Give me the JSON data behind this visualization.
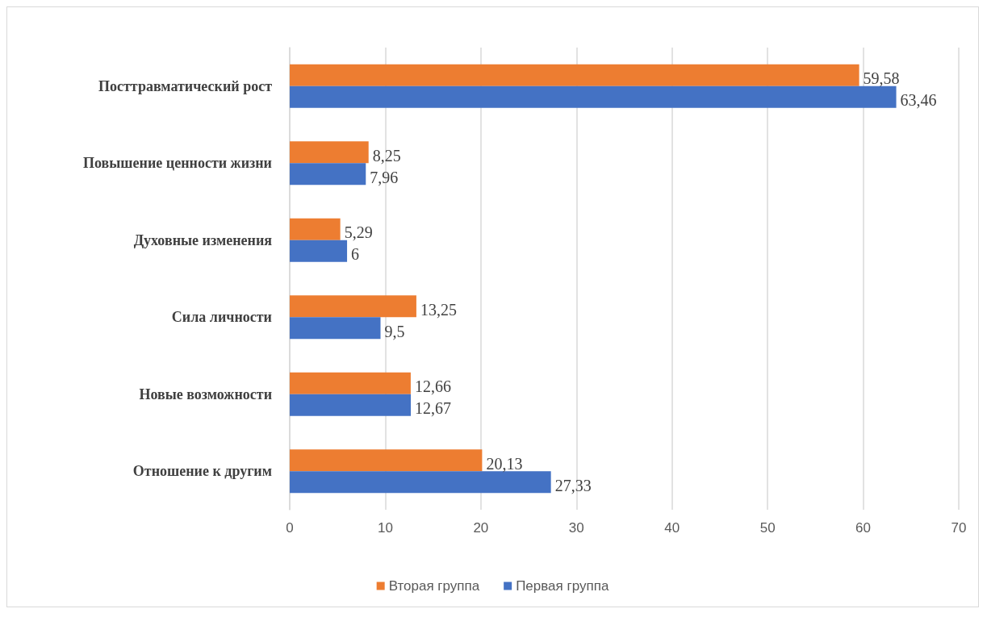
{
  "chart_data": {
    "type": "bar",
    "orientation": "horizontal",
    "categories": [
      "Посттравматический рост",
      "Повышение ценности жизни",
      "Духовные изменения",
      "Сила личности",
      "Новые возможности",
      "Отношение к другим"
    ],
    "series": [
      {
        "name": "Вторая группа",
        "color": "#ed7d31",
        "values": [
          59.58,
          8.25,
          5.29,
          13.25,
          12.66,
          20.13
        ],
        "value_labels": [
          "59,58",
          "8,25",
          "5,29",
          "13,25",
          "12,66",
          "20,13"
        ]
      },
      {
        "name": "Первая группа",
        "color": "#4472c4",
        "values": [
          63.46,
          7.96,
          6,
          9.5,
          12.67,
          27.33
        ],
        "value_labels": [
          "63,46",
          "7,96",
          "6",
          "9,5",
          "12,67",
          "27,33"
        ]
      }
    ],
    "xlim": [
      0,
      70
    ],
    "xticks": [
      0,
      10,
      20,
      30,
      40,
      50,
      60,
      70
    ],
    "grid": "x",
    "legend": "bottom"
  }
}
